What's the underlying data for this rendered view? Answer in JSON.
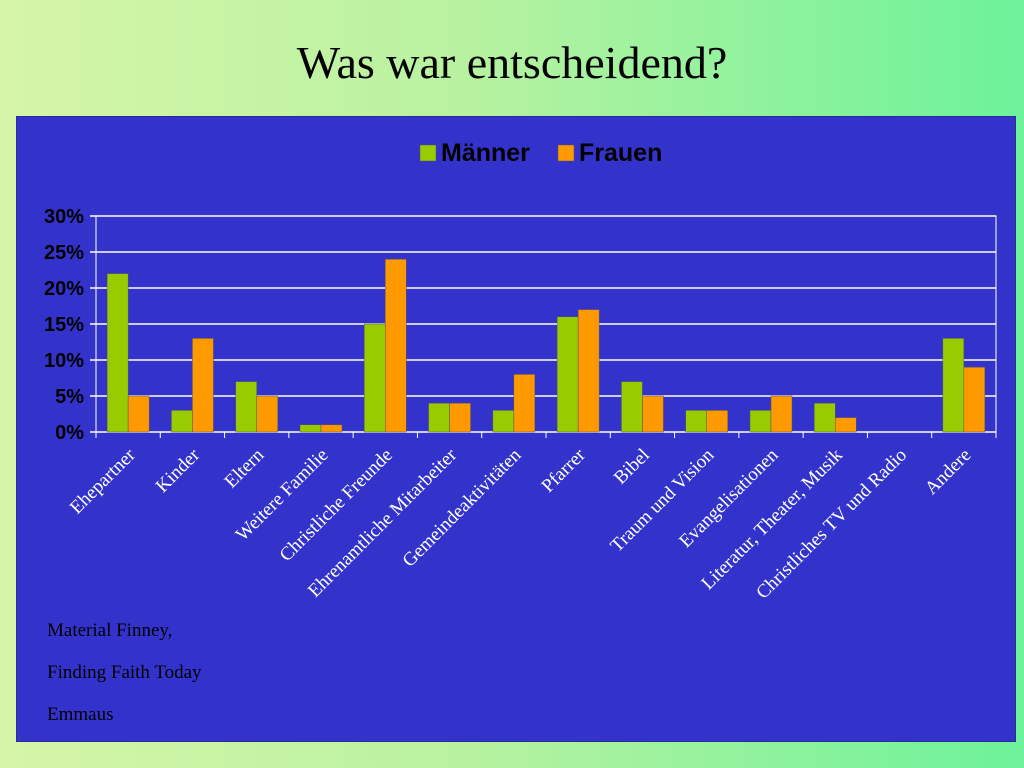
{
  "title": "Was war entscheidend?",
  "notes": [
    "Material Finney,",
    "Finding Faith Today",
    "Emmaus"
  ],
  "colors": {
    "panel": "#3333cc",
    "grid": "#ffffff",
    "maenner": "#99cc00",
    "frauen": "#ff9900",
    "text": "#000000",
    "category_text": "#ffffff"
  },
  "chart_data": {
    "type": "bar",
    "categories": [
      "Ehepartner",
      "Kinder",
      "Eltern",
      "Weitere Familie",
      "Christliche Freunde",
      "Ehrenamtliche Mitarbeiter",
      "Gemeindeaktivitäten",
      "Pfarrer",
      "Bibel",
      "Traum und Vision",
      "Evangelisationen",
      "Literatur, Theater, Musik",
      "Christliches TV und Radio",
      "Andere"
    ],
    "series": [
      {
        "name": "Männer",
        "values": [
          22,
          3,
          7,
          1,
          15,
          4,
          3,
          16,
          7,
          3,
          3,
          4,
          0,
          13
        ]
      },
      {
        "name": "Frauen",
        "values": [
          5,
          13,
          5,
          1,
          24,
          4,
          8,
          17,
          5,
          3,
          5,
          2,
          0,
          9
        ]
      }
    ],
    "yticks": [
      "0%",
      "5%",
      "10%",
      "15%",
      "20%",
      "25%",
      "30%"
    ],
    "ylim": [
      0,
      30
    ],
    "grid": true,
    "legend": "top-center"
  }
}
